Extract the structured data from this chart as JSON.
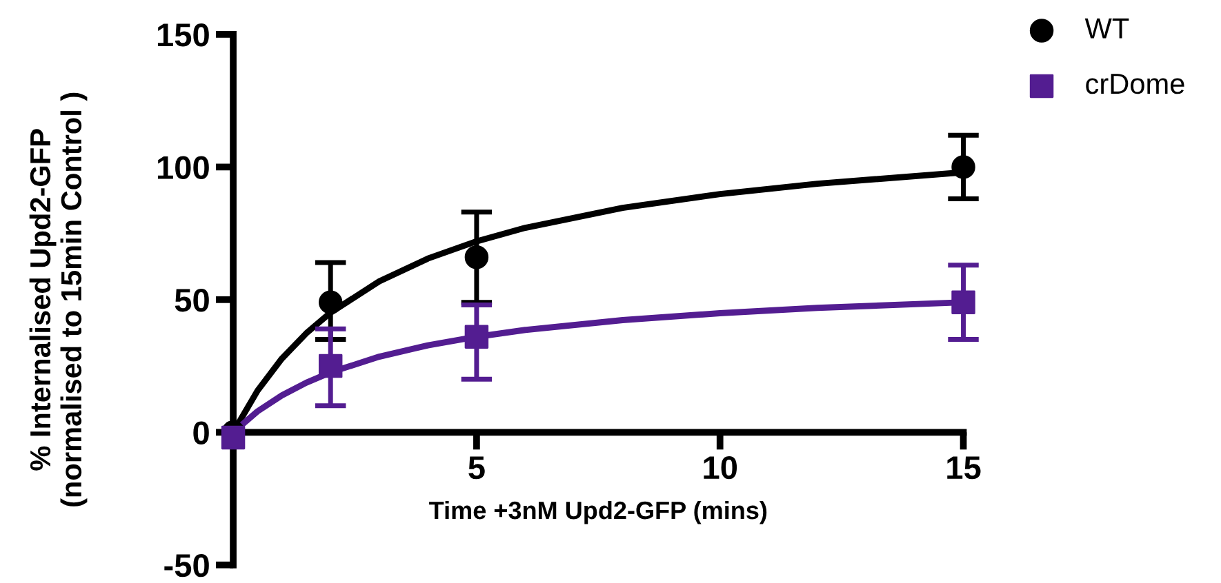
{
  "chart_data": {
    "type": "scatter",
    "xlabel": "Time +3nM Upd2-GFP (mins)",
    "ylabel": "% Internalised Upd2-GFP\n(normalised to 15min Control )",
    "xlim": [
      0,
      15
    ],
    "xticks": [
      {
        "value": 0,
        "label": null
      },
      5,
      10,
      15
    ],
    "ylim": [
      -50,
      150
    ],
    "yticks": [
      -50,
      0,
      50,
      100,
      150
    ],
    "grid": false,
    "legend": "top right",
    "series": [
      {
        "name": "WT",
        "color": "#000000",
        "marker": "circle",
        "x": [
          0,
          2,
          5,
          15
        ],
        "values": [
          0,
          49,
          66,
          100
        ],
        "errors": [
          null,
          [
            35,
            64
          ],
          [
            49,
            83
          ],
          [
            88,
            112
          ]
        ]
      },
      {
        "name": "crDome",
        "color": "#531d91",
        "marker": "square",
        "x": [
          0,
          2,
          5,
          15
        ],
        "values": [
          -2,
          25,
          36,
          49
        ],
        "errors": [
          null,
          [
            10,
            39
          ],
          [
            20,
            48
          ],
          [
            35,
            63
          ]
        ]
      },
      {
        "type": "line",
        "color": "#000000",
        "marker": "none",
        "x": [
          0,
          0.5,
          1,
          1.5,
          2,
          3,
          4,
          5,
          6,
          8,
          10,
          12,
          15
        ],
        "values": [
          0,
          15.7,
          27.8,
          37.3,
          45.1,
          56.9,
          65.5,
          72.0,
          77.1,
          84.6,
          89.8,
          93.7,
          98.0
        ]
      },
      {
        "type": "line",
        "color": "#531d91",
        "marker": "none",
        "x": [
          0,
          0.5,
          1,
          1.5,
          2,
          3,
          4,
          5,
          6,
          8,
          10,
          12,
          15
        ],
        "values": [
          0,
          7.9,
          13.9,
          18.7,
          22.6,
          28.5,
          32.8,
          36.0,
          38.6,
          42.3,
          44.9,
          46.9,
          49.0
        ]
      }
    ]
  }
}
